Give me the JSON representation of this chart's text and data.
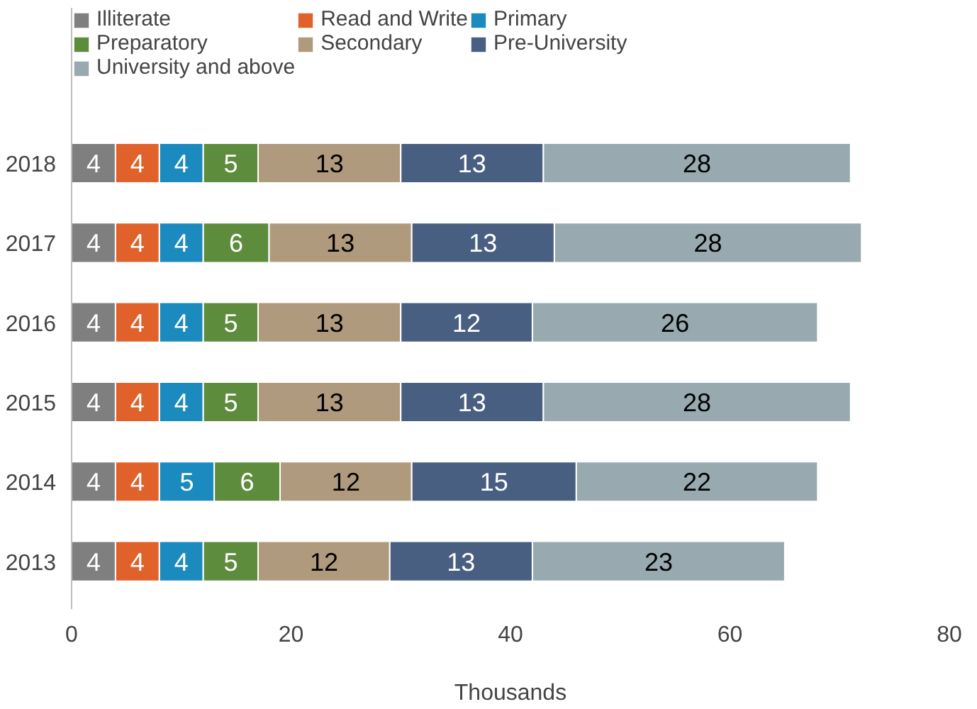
{
  "chart_data": {
    "type": "bar",
    "orientation": "horizontal",
    "stacked": true,
    "xlabel": "Thousands",
    "categories": [
      "2018",
      "2017",
      "2016",
      "2015",
      "2014",
      "2013"
    ],
    "series": [
      {
        "name": "Illiterate",
        "color": "#7f7f7f",
        "values": [
          4,
          4,
          4,
          4,
          4,
          4
        ]
      },
      {
        "name": "Read and Write",
        "color": "#e0622a",
        "values": [
          4,
          4,
          4,
          4,
          4,
          4
        ]
      },
      {
        "name": "Primary",
        "color": "#1b8abf",
        "values": [
          4,
          4,
          4,
          4,
          5,
          4
        ]
      },
      {
        "name": "Preparatory",
        "color": "#5e8c3d",
        "values": [
          5,
          6,
          5,
          5,
          6,
          5
        ]
      },
      {
        "name": "Secondary",
        "color": "#b09a7d",
        "values": [
          13,
          13,
          13,
          13,
          12,
          12
        ]
      },
      {
        "name": "Pre-University",
        "color": "#485f82",
        "values": [
          13,
          13,
          12,
          13,
          15,
          13
        ]
      },
      {
        "name": "University and above",
        "color": "#98a9b0",
        "values": [
          28,
          28,
          26,
          28,
          22,
          23
        ]
      }
    ],
    "xlim": [
      0,
      80
    ],
    "xticks": [
      0,
      20,
      40,
      60,
      80
    ],
    "grid": false,
    "legend": "top",
    "data_labels": true
  }
}
